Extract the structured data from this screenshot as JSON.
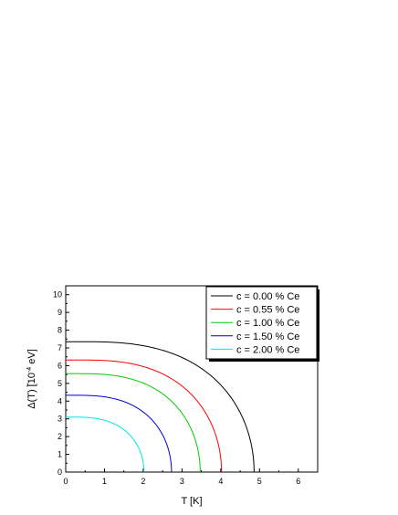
{
  "chart_data": {
    "type": "line",
    "xlabel": "T [K]",
    "ylabel_parts": {
      "base": "Δ(T) [10",
      "exponent": "-4",
      "unit": " eV]"
    },
    "xlim": [
      0,
      6.5
    ],
    "ylim": [
      0,
      10.5
    ],
    "xticks": [
      "0",
      "1",
      "2",
      "3",
      "4",
      "5",
      "6"
    ],
    "yticks": [
      "0",
      "1",
      "2",
      "3",
      "4",
      "5",
      "6",
      "7",
      "8",
      "9",
      "10"
    ],
    "legend_position": "top-right",
    "grid": false,
    "series": [
      {
        "name": "c = 0.00 % Ce",
        "color": "#000000",
        "delta0": 7.35,
        "Tc": 4.86
      },
      {
        "name": "c = 0.55 % Ce",
        "color": "#ff0000",
        "delta0": 6.32,
        "Tc": 4.02
      },
      {
        "name": "c = 1.00 % Ce",
        "color": "#00cc00",
        "delta0": 5.55,
        "Tc": 3.47
      },
      {
        "name": "c = 1.50 % Ce",
        "color": "#0000cc",
        "delta0": 4.33,
        "Tc": 2.73
      },
      {
        "name": "c = 2.00 % Ce",
        "color": "#00e5e5",
        "delta0": 3.1,
        "Tc": 2.02
      }
    ]
  }
}
